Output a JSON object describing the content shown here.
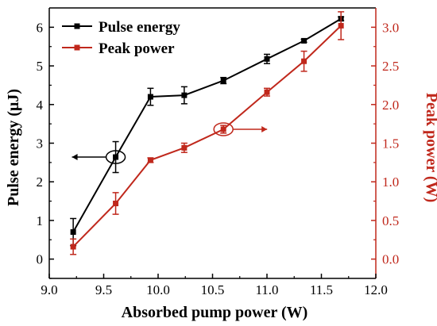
{
  "chart_data": {
    "type": "line",
    "xlabel": "Absorbed pump power (W)",
    "ylabel": "Pulse energy (μJ)",
    "y2label": "Peak power (W)",
    "xlim": [
      9.0,
      12.0
    ],
    "ylim": [
      -0.5,
      6.5
    ],
    "y2lim": [
      -0.25,
      3.25
    ],
    "xticks": [
      "9.0",
      "9.5",
      "10.0",
      "10.5",
      "11.0",
      "11.5",
      "12.0"
    ],
    "yticks": [
      "0",
      "1",
      "2",
      "3",
      "4",
      "5",
      "6"
    ],
    "y2ticks": [
      "0.0",
      "0.5",
      "1.0",
      "1.5",
      "2.0",
      "2.5",
      "3.0"
    ],
    "grid": false,
    "legend_position": "top-left",
    "colors": {
      "left_axis": "#000000",
      "right_axis": "#c0281c"
    },
    "series": [
      {
        "name": "Pulse energy",
        "axis": "left",
        "color": "#000000",
        "marker": "square",
        "x": [
          9.22,
          9.61,
          9.93,
          10.24,
          10.6,
          11.0,
          11.34,
          11.68
        ],
        "y": [
          0.7,
          2.64,
          4.2,
          4.24,
          4.62,
          5.18,
          5.65,
          6.22
        ],
        "err": [
          0.35,
          0.4,
          0.22,
          0.22,
          0.08,
          0.12,
          0.04,
          0.05
        ]
      },
      {
        "name": "Peak power",
        "axis": "right",
        "color": "#c0281c",
        "marker": "square",
        "x": [
          9.22,
          9.61,
          9.93,
          10.24,
          10.6,
          11.0,
          11.34,
          11.68
        ],
        "y": [
          0.16,
          0.72,
          1.28,
          1.44,
          1.68,
          2.16,
          2.56,
          3.02
        ],
        "err": [
          0.1,
          0.14,
          0.03,
          0.06,
          0.05,
          0.05,
          0.13,
          0.18
        ]
      }
    ],
    "annotations": [
      {
        "kind": "ellipse-arrow",
        "series": "Pulse energy",
        "x": 9.61,
        "direction": "left"
      },
      {
        "kind": "ellipse-arrow",
        "series": "Peak power",
        "x": 10.6,
        "direction": "right"
      }
    ]
  }
}
